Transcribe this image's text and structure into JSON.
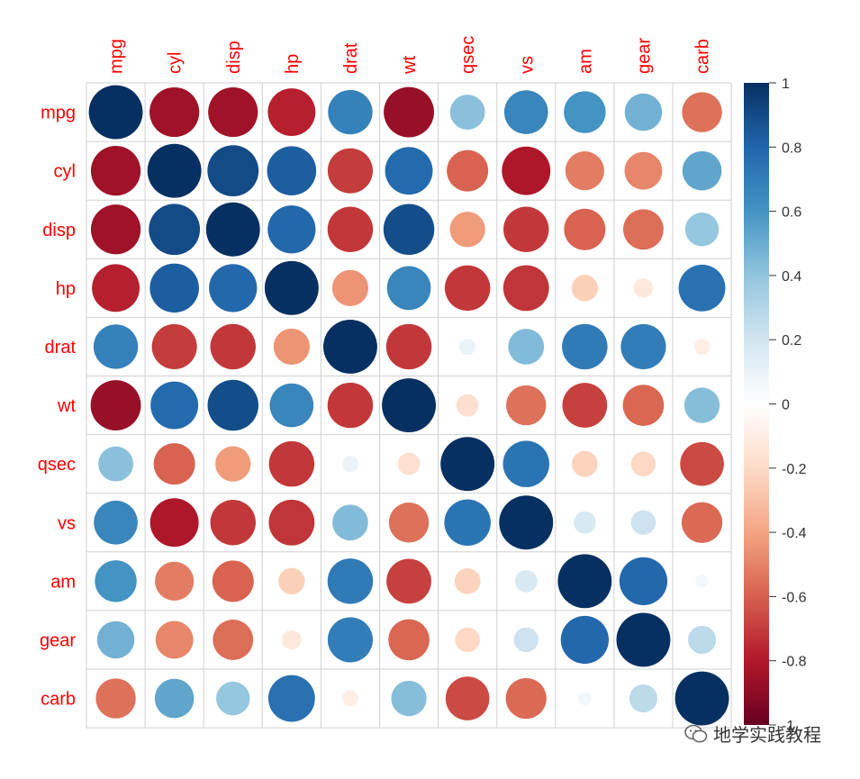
{
  "chart_data": {
    "type": "heatmap",
    "subtype": "correlation-circles",
    "variables": [
      "mpg",
      "cyl",
      "disp",
      "hp",
      "drat",
      "wt",
      "qsec",
      "vs",
      "am",
      "gear",
      "carb"
    ],
    "matrix": [
      [
        1.0,
        -0.85,
        -0.85,
        -0.78,
        0.68,
        -0.87,
        0.42,
        0.66,
        0.6,
        0.48,
        -0.55
      ],
      [
        -0.85,
        1.0,
        0.9,
        0.83,
        -0.7,
        0.78,
        -0.59,
        -0.81,
        -0.52,
        -0.49,
        0.53
      ],
      [
        -0.85,
        0.9,
        1.0,
        0.79,
        -0.71,
        0.89,
        -0.43,
        -0.71,
        -0.59,
        -0.56,
        0.39
      ],
      [
        -0.78,
        0.83,
        0.79,
        1.0,
        -0.45,
        0.66,
        -0.71,
        -0.72,
        -0.24,
        -0.13,
        0.75
      ],
      [
        0.68,
        -0.7,
        -0.71,
        -0.45,
        1.0,
        -0.71,
        0.09,
        0.44,
        0.71,
        0.7,
        -0.09
      ],
      [
        -0.87,
        0.78,
        0.89,
        0.66,
        -0.71,
        1.0,
        -0.17,
        -0.55,
        -0.69,
        -0.58,
        0.43
      ],
      [
        0.42,
        -0.59,
        -0.43,
        -0.71,
        0.09,
        -0.17,
        1.0,
        0.74,
        -0.23,
        -0.21,
        -0.66
      ],
      [
        0.66,
        -0.81,
        -0.71,
        -0.72,
        0.44,
        -0.55,
        0.74,
        1.0,
        0.17,
        0.21,
        -0.57
      ],
      [
        0.6,
        -0.52,
        -0.59,
        -0.24,
        0.71,
        -0.69,
        -0.23,
        0.17,
        1.0,
        0.79,
        0.06
      ],
      [
        0.48,
        -0.49,
        -0.56,
        -0.13,
        0.7,
        -0.58,
        -0.21,
        0.21,
        0.79,
        1.0,
        0.27
      ],
      [
        -0.55,
        0.53,
        0.39,
        0.75,
        -0.09,
        0.43,
        -0.66,
        -0.57,
        0.06,
        0.27,
        1.0
      ]
    ],
    "colorbar": {
      "range": [
        -1,
        1
      ],
      "ticks": [
        "1",
        "0.8",
        "0.6",
        "0.4",
        "0.2",
        "0",
        "-0.2",
        "-0.4",
        "-0.6",
        "-0.8",
        "-1"
      ],
      "tick_values": [
        1,
        0.8,
        0.6,
        0.4,
        0.2,
        0,
        -0.2,
        -0.4,
        -0.6,
        -0.8,
        -1
      ]
    },
    "colors": {
      "negative_end": "#67001F",
      "positive_end": "#053061",
      "label": "#FF0000",
      "grid": "#D0D0D0"
    },
    "grid": true
  },
  "watermark": {
    "text": "地学实践教程"
  }
}
